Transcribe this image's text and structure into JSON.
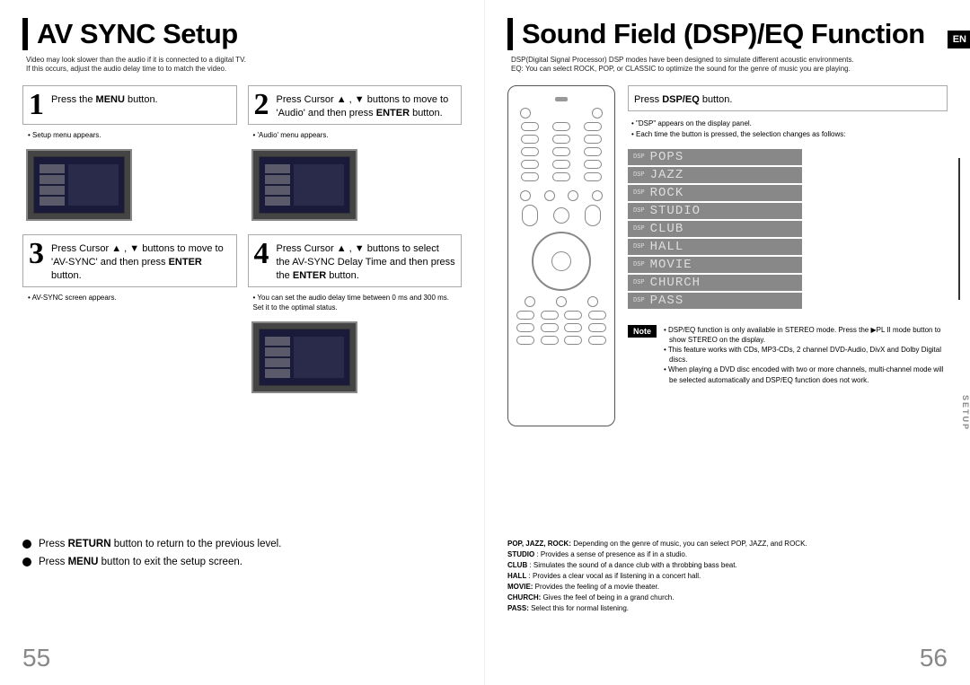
{
  "left": {
    "title": "AV SYNC Setup",
    "subtitle": "Video may look slower than the audio if it is connected to a digital TV.\nIf this occurs, adjust the audio delay time to to match the video.",
    "steps": [
      {
        "num": "1",
        "text": "Press the <b>MENU</b> button.",
        "note": "Setup menu appears."
      },
      {
        "num": "2",
        "text": "Press Cursor ▲ , ▼ buttons to move to 'Audio' and then press <b>ENTER</b> button.",
        "note": "'Audio' menu appears."
      },
      {
        "num": "3",
        "text": "Press Cursor ▲ , ▼ buttons to move to 'AV-SYNC' and then press <b>ENTER</b> button.",
        "note": "AV-SYNC screen appears."
      },
      {
        "num": "4",
        "text": "Press Cursor ▲ , ▼ buttons to select the AV-SYNC Delay Time  and then press the <b>ENTER</b> button.",
        "note": "You can set the audio delay time between 0 ms and 300 ms. Set it to the optimal status."
      }
    ],
    "footer": [
      "Press <b>RETURN</b> button to return to the previous level.",
      "Press <b>MENU</b> button to exit the setup screen."
    ],
    "pageNum": "55"
  },
  "right": {
    "title": "Sound Field (DSP)/EQ Function",
    "enBadge": "EN",
    "subtitle": "DSP(Digital Signal Processor) DSP modes have been designed to simulate different acoustic environments.\nEQ: You can select ROCK, POP, or CLASSIC to optimize the sound for the genre of music you are playing.",
    "instruction": "Press <b>DSP/EQ</b> button.",
    "instructionNotes": [
      "\"DSP\" appears on the display panel.",
      "Each time the button is pressed, the selection changes as follows:"
    ],
    "modes": [
      "POPS",
      "JAZZ",
      "ROCK",
      "STUDIO",
      "CLUB",
      "HALL",
      "MOVIE",
      "CHURCH",
      "PASS"
    ],
    "modeTag": "DSP",
    "noteLabel": "Note",
    "notes": [
      "DSP/EQ function is only available in STEREO mode. Press the ▶PL II mode button to show STEREO on the display.",
      "This feature works with CDs, MP3-CDs, 2 channel DVD-Audio, DivX and Dolby Digital discs.",
      "When playing a DVD disc encoded with two or more channels, multi-channel mode will be selected automatically and DSP/EQ function does not work."
    ],
    "defs": [
      {
        "k": "POP, JAZZ, ROCK:",
        "v": " Depending on the genre of music, you can select POP, JAZZ, and ROCK."
      },
      {
        "k": "STUDIO",
        "v": " : Provides a sense of presence as if in a studio."
      },
      {
        "k": "CLUB",
        "v": " : Simulates the sound of a dance club with a throbbing bass beat."
      },
      {
        "k": "HALL",
        "v": " : Provides a clear vocal as if listening in a concert hall."
      },
      {
        "k": "MOVIE:",
        "v": " Provides the feeling of a movie theater."
      },
      {
        "k": "CHURCH:",
        "v": " Gives the feel of being in a grand church."
      },
      {
        "k": "PASS:",
        "v": " Select this for normal listening."
      }
    ],
    "setupTab": "SETUP",
    "pageNum": "56"
  }
}
